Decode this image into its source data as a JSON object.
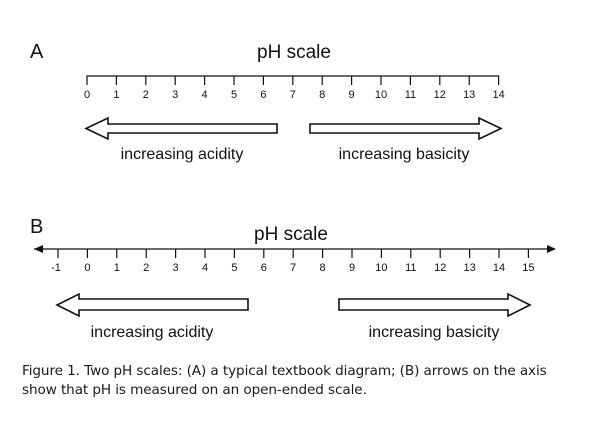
{
  "panels": [
    {
      "label": "A",
      "title": "pH scale",
      "ticks": [
        "0",
        "1",
        "2",
        "3",
        "4",
        "5",
        "6",
        "7",
        "8",
        "9",
        "10",
        "11",
        "12",
        "13",
        "14"
      ],
      "left_arrow_label": "increasing acidity",
      "right_arrow_label": "increasing basicity"
    },
    {
      "label": "B",
      "title": "pH scale",
      "ticks": [
        "-1",
        "0",
        "1",
        "2",
        "3",
        "4",
        "5",
        "6",
        "7",
        "8",
        "9",
        "10",
        "11",
        "12",
        "13",
        "14",
        "15"
      ],
      "left_arrow_label": "increasing acidity",
      "right_arrow_label": "increasing basicity"
    }
  ],
  "caption": "Figure 1. Two pH scales: (A) a typical textbook diagram; (B) arrows on the axis show that pH is measured on an open-ended scale."
}
